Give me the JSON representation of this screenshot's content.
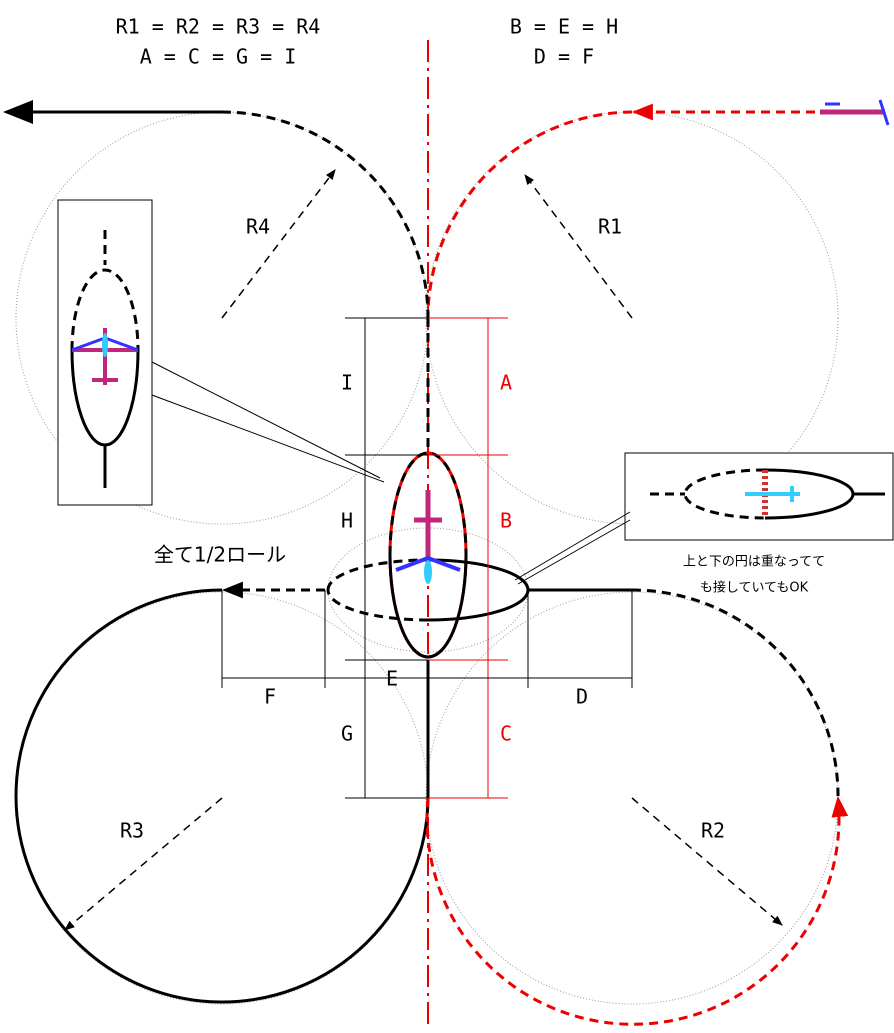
{
  "header": {
    "radii_equal": "R1 = R2 = R3 = R4",
    "lengths_equal": "A = C = G = I",
    "widths_equal": "B = E = H",
    "sides_equal": "D = F"
  },
  "radius_labels": {
    "r1": "R1",
    "r2": "R2",
    "r3": "R3",
    "r4": "R4"
  },
  "dimension_labels": {
    "a": "A",
    "b": "B",
    "c": "C",
    "d": "D",
    "e": "E",
    "f": "F",
    "g": "G",
    "h": "H",
    "i": "I"
  },
  "roll_note": "全て1/2ロール",
  "circle_note": [
    "上と下の円は重なってて",
    "も接していてもOK"
  ]
}
